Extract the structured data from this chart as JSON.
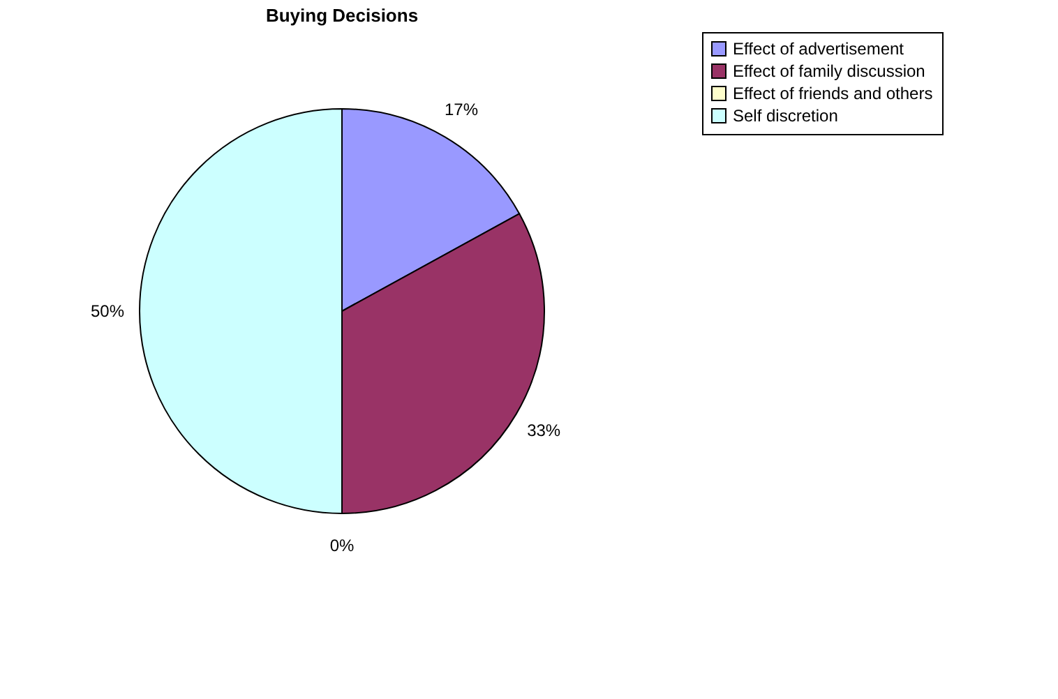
{
  "chart_data": {
    "type": "pie",
    "title": "Buying Decisions",
    "categories": [
      "Effect of advertisement",
      "Effect of family discussion",
      "Effect of friends and others",
      "Self discretion"
    ],
    "values": [
      17,
      33,
      0,
      50
    ],
    "colors": [
      "#9999ff",
      "#993366",
      "#ffffcc",
      "#ccffff"
    ],
    "value_labels": [
      "17%",
      "33%",
      "0%",
      "50%"
    ],
    "legend": "right"
  }
}
